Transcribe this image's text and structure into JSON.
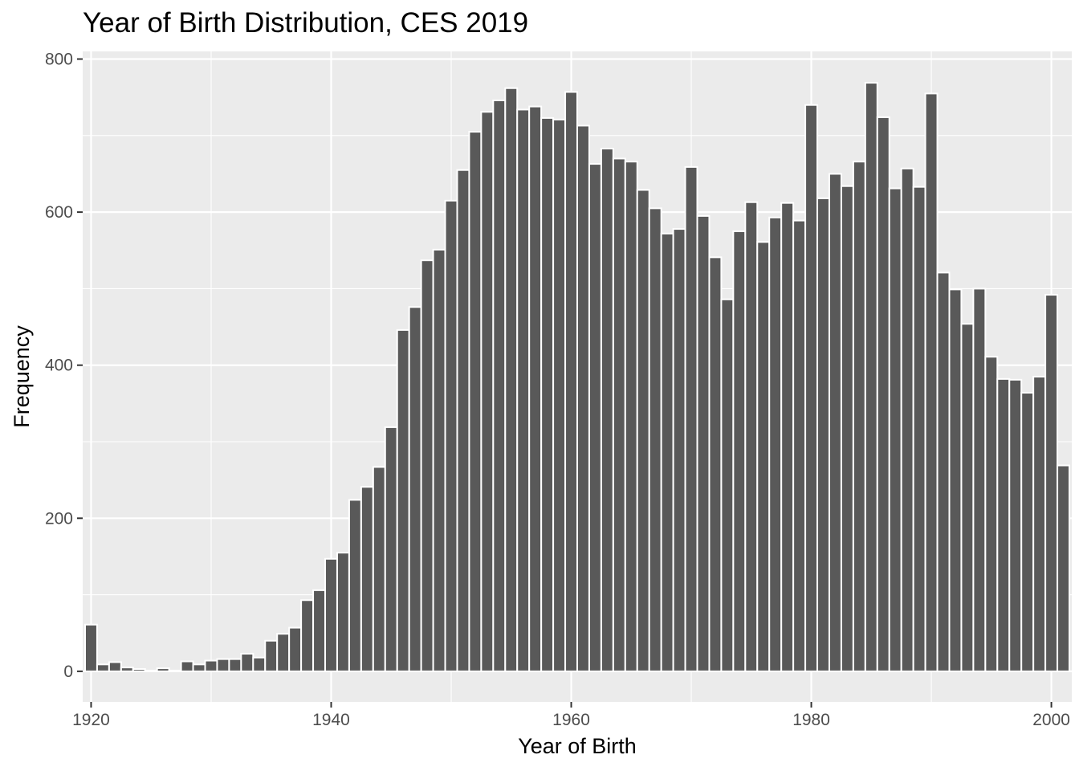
{
  "chart_data": {
    "type": "bar",
    "title": "Year of Birth Distribution, CES 2019",
    "xlabel": "Year of Birth",
    "ylabel": "Frequency",
    "xlim": [
      1919.3,
      2001.7
    ],
    "ylim": [
      -40,
      810
    ],
    "x_ticks": [
      1920,
      1940,
      1960,
      1980,
      2000
    ],
    "y_ticks": [
      0,
      200,
      400,
      600,
      800
    ],
    "grid": true,
    "legend": "none",
    "colors": {
      "bar": "#595959",
      "bar_outline": "#ffffff",
      "panel": "#ebebeb",
      "grid": "#ffffff"
    },
    "x": [
      1920,
      1921,
      1922,
      1923,
      1924,
      1925,
      1926,
      1927,
      1928,
      1929,
      1930,
      1931,
      1932,
      1933,
      1934,
      1935,
      1936,
      1937,
      1938,
      1939,
      1940,
      1941,
      1942,
      1943,
      1944,
      1945,
      1946,
      1947,
      1948,
      1949,
      1950,
      1951,
      1952,
      1953,
      1954,
      1955,
      1956,
      1957,
      1958,
      1959,
      1960,
      1961,
      1962,
      1963,
      1964,
      1965,
      1966,
      1967,
      1968,
      1969,
      1970,
      1971,
      1972,
      1973,
      1974,
      1975,
      1976,
      1977,
      1978,
      1979,
      1980,
      1981,
      1982,
      1983,
      1984,
      1985,
      1986,
      1987,
      1988,
      1989,
      1990,
      1991,
      1992,
      1993,
      1994,
      1995,
      1996,
      1997,
      1998,
      1999,
      2000,
      2001
    ],
    "values": [
      61,
      9,
      12,
      5,
      3,
      1,
      4,
      1,
      13,
      9,
      14,
      16,
      16,
      23,
      18,
      40,
      49,
      57,
      93,
      106,
      147,
      155,
      224,
      241,
      267,
      319,
      446,
      476,
      537,
      551,
      615,
      655,
      705,
      731,
      746,
      762,
      734,
      738,
      723,
      721,
      757,
      713,
      663,
      683,
      670,
      666,
      629,
      605,
      572,
      578,
      659,
      595,
      541,
      486,
      575,
      613,
      561,
      593,
      612,
      589,
      740,
      618,
      650,
      634,
      666,
      769,
      724,
      631,
      657,
      633,
      755,
      521,
      499,
      454,
      500,
      411,
      382,
      381,
      364,
      385,
      492,
      269
    ]
  }
}
